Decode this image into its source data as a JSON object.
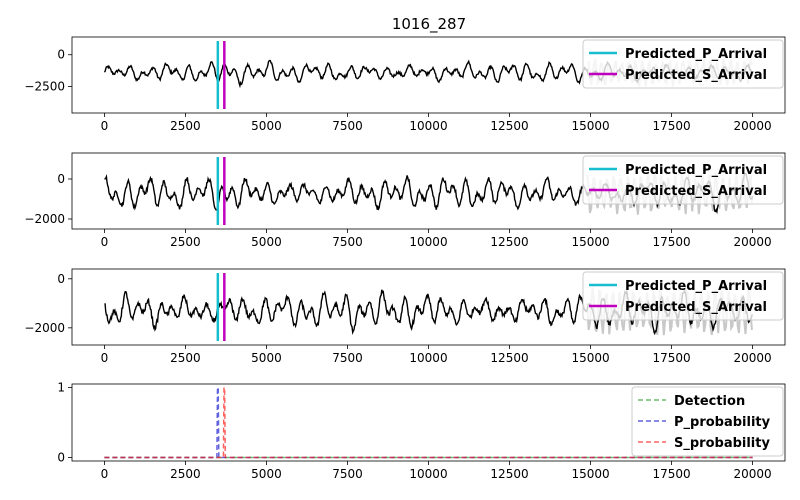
{
  "title": "1016_287",
  "colors": {
    "waveform": "#000000",
    "waveform_tail": "#c8c8c8",
    "p_arrival": "#17becf",
    "s_arrival": "#bf00bf",
    "detection": "#2ca02c",
    "p_probability": "#1f1fd0",
    "s_probability": "#ff2020"
  },
  "chart_data": [
    {
      "type": "line",
      "panel": "waveform-1",
      "title": "1016_287",
      "xlim": [
        -1000,
        21000
      ],
      "ylim": [
        -4600,
        1400
      ],
      "xticks": [
        0,
        2500,
        5000,
        7500,
        10000,
        12500,
        15000,
        17500,
        20000
      ],
      "yticks": [
        0,
        -2500
      ],
      "ytick_labels": [
        "0",
        "−2500"
      ],
      "baseline": -1400,
      "amplitude": 600,
      "samples": 20000,
      "markers": [
        {
          "name": "Predicted_P_Arrival",
          "x": 3500
        },
        {
          "name": "Predicted_S_Arrival",
          "x": 3700
        }
      ],
      "legend": [
        "Predicted_P_Arrival",
        "Predicted_S_Arrival"
      ],
      "legend_position": "top-right"
    },
    {
      "type": "line",
      "panel": "waveform-2",
      "xlim": [
        -1000,
        21000
      ],
      "ylim": [
        -2500,
        1300
      ],
      "xticks": [
        0,
        2500,
        5000,
        7500,
        10000,
        12500,
        15000,
        17500,
        20000
      ],
      "yticks": [
        0,
        -2000
      ],
      "ytick_labels": [
        "0",
        "−2000"
      ],
      "baseline": -700,
      "amplitude": 600,
      "samples": 20000,
      "markers": [
        {
          "name": "Predicted_P_Arrival",
          "x": 3500
        },
        {
          "name": "Predicted_S_Arrival",
          "x": 3700
        }
      ],
      "legend": [
        "Predicted_P_Arrival",
        "Predicted_S_Arrival"
      ],
      "legend_position": "top-right"
    },
    {
      "type": "line",
      "panel": "waveform-3",
      "xlim": [
        -1000,
        21000
      ],
      "ylim": [
        -2700,
        400
      ],
      "xticks": [
        0,
        2500,
        5000,
        7500,
        10000,
        12500,
        15000,
        17500,
        20000
      ],
      "yticks": [
        0,
        -2000
      ],
      "ytick_labels": [
        "0",
        "−2000"
      ],
      "baseline": -1300,
      "amplitude": 550,
      "samples": 20000,
      "markers": [
        {
          "name": "Predicted_P_Arrival",
          "x": 3500
        },
        {
          "name": "Predicted_S_Arrival",
          "x": 3700
        }
      ],
      "legend": [
        "Predicted_P_Arrival",
        "Predicted_S_Arrival"
      ],
      "legend_position": "top-right"
    },
    {
      "type": "line",
      "panel": "probabilities",
      "xlim": [
        -1000,
        21000
      ],
      "ylim": [
        -0.05,
        1.05
      ],
      "xticks": [
        0,
        2500,
        5000,
        7500,
        10000,
        12500,
        15000,
        17500,
        20000
      ],
      "yticks": [
        0,
        1
      ],
      "ytick_labels": [
        "0",
        "1"
      ],
      "series": [
        {
          "name": "Detection",
          "style": "dashed",
          "x": [
            0,
            20000
          ],
          "y": [
            0,
            0
          ]
        },
        {
          "name": "P_probability",
          "style": "dashed",
          "x": [
            0,
            3470,
            3490,
            3510,
            3530,
            20000
          ],
          "y": [
            0,
            0,
            1,
            1,
            0,
            0
          ]
        },
        {
          "name": "S_probability",
          "style": "dashed",
          "x": [
            0,
            3670,
            3690,
            3710,
            3730,
            20000
          ],
          "y": [
            0,
            0,
            1,
            1,
            0,
            0
          ]
        }
      ],
      "legend": [
        "Detection",
        "P_probability",
        "S_probability"
      ],
      "legend_position": "top-right"
    }
  ]
}
